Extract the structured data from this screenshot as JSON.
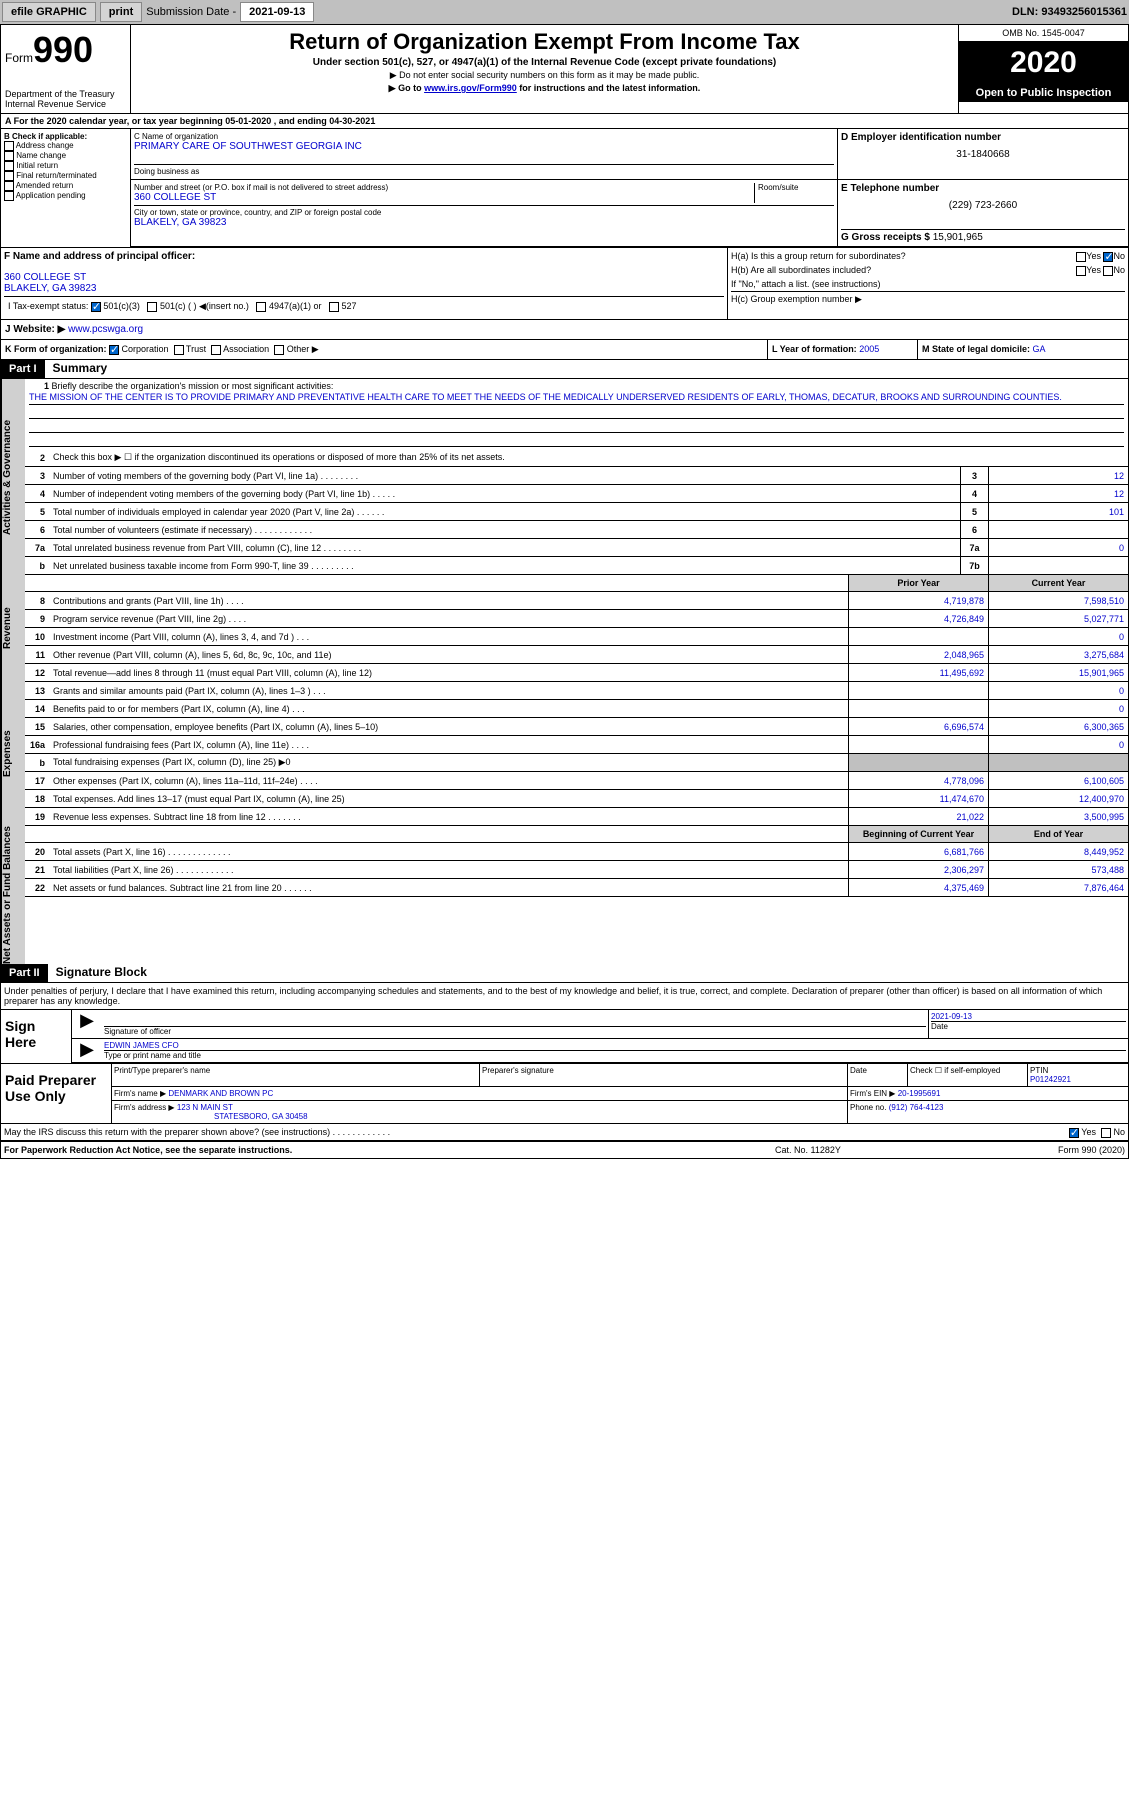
{
  "topbar": {
    "efile": "efile GRAPHIC",
    "print": "print",
    "sub_label": "Submission Date - ",
    "sub_date": "2021-09-13",
    "dln_label": "DLN: ",
    "dln": "93493256015361"
  },
  "header": {
    "form_word": "Form",
    "form_num": "990",
    "dept": "Department of the Treasury\nInternal Revenue Service",
    "title": "Return of Organization Exempt From Income Tax",
    "sub": "Under section 501(c), 527, or 4947(a)(1) of the Internal Revenue Code (except private foundations)",
    "note1": "▶ Do not enter social security numbers on this form as it may be made public.",
    "note2_pre": "▶ Go to ",
    "note2_link": "www.irs.gov/Form990",
    "note2_post": " for instructions and the latest information.",
    "omb": "OMB No. 1545-0047",
    "year": "2020",
    "public": "Open to Public Inspection"
  },
  "line_a": "A For the 2020 calendar year, or tax year beginning 05-01-2020      , and ending 04-30-2021",
  "box_b": {
    "label": "B Check if applicable:",
    "items": [
      "Address change",
      "Name change",
      "Initial return",
      "Final return/terminated",
      "Amended return",
      "Application pending"
    ]
  },
  "box_c": {
    "label": "C Name of organization",
    "name": "PRIMARY CARE OF SOUTHWEST GEORGIA INC",
    "dba_label": "Doing business as",
    "addr_label": "Number and street (or P.O. box if mail is not delivered to street address)",
    "room_label": "Room/suite",
    "addr": "360 COLLEGE ST",
    "city_label": "City or town, state or province, country, and ZIP or foreign postal code",
    "city": "BLAKELY, GA  39823"
  },
  "box_d": {
    "label": "D Employer identification number",
    "value": "31-1840668"
  },
  "box_e": {
    "label": "E Telephone number",
    "value": "(229) 723-2660"
  },
  "box_g": {
    "label": "G Gross receipts $ ",
    "value": "15,901,965"
  },
  "box_f": {
    "label": "F Name and address of principal officer:",
    "addr1": "360 COLLEGE ST",
    "addr2": "BLAKELY, GA  39823"
  },
  "box_h": {
    "ha": "H(a)  Is this a group return for subordinates?",
    "hb": "H(b)  Are all subordinates included?",
    "hb_note": "If \"No,\" attach a list. (see instructions)",
    "hc": "H(c)  Group exemption number ▶",
    "yes": "Yes",
    "no": "No"
  },
  "box_i": {
    "label": "I   Tax-exempt status:",
    "opts": [
      "501(c)(3)",
      "501(c) (  ) ◀(insert no.)",
      "4947(a)(1) or",
      "527"
    ]
  },
  "box_j": {
    "label": "J   Website: ▶  ",
    "value": "www.pcswga.org"
  },
  "box_k": "K Form of organization:",
  "k_opts": [
    "Corporation",
    "Trust",
    "Association",
    "Other ▶"
  ],
  "box_l": {
    "label": "L Year of formation: ",
    "value": "2005"
  },
  "box_m": {
    "label": "M State of legal domicile: ",
    "value": "GA"
  },
  "part1": {
    "hdr": "Part I",
    "title": "Summary"
  },
  "mission": {
    "num": "1",
    "label": "Briefly describe the organization's mission or most significant activities:",
    "text": "THE MISSION OF THE CENTER IS TO PROVIDE PRIMARY AND PREVENTATIVE HEALTH CARE TO MEET THE NEEDS OF THE MEDICALLY UNDERSERVED RESIDENTS OF EARLY, THOMAS, DECATUR, BROOKS AND SURROUNDING COUNTIES."
  },
  "vtabs": {
    "gov": "Activities & Governance",
    "rev": "Revenue",
    "exp": "Expenses",
    "net": "Net Assets or Fund Balances"
  },
  "lines": {
    "l2": {
      "n": "2",
      "t": "Check this box ▶ ☐  if the organization discontinued its operations or disposed of more than 25% of its net assets."
    },
    "l3": {
      "n": "3",
      "t": "Number of voting members of the governing body (Part VI, line 1a)   .    .    .    .    .    .    .    .",
      "box": "3",
      "v": "12"
    },
    "l4": {
      "n": "4",
      "t": "Number of independent voting members of the governing body (Part VI, line 1b)   .    .    .    .    .",
      "box": "4",
      "v": "12"
    },
    "l5": {
      "n": "5",
      "t": "Total number of individuals employed in calendar year 2020 (Part V, line 2a)   .    .    .    .    .    .",
      "box": "5",
      "v": "101"
    },
    "l6": {
      "n": "6",
      "t": "Total number of volunteers (estimate if necessary)    .    .    .    .    .    .    .    .    .    .    .    .",
      "box": "6",
      "v": ""
    },
    "l7a": {
      "n": "7a",
      "t": "Total unrelated business revenue from Part VIII, column (C), line 12   .    .    .    .    .    .    .    .",
      "box": "7a",
      "v": "0"
    },
    "l7b": {
      "n": "b",
      "t": "Net unrelated business taxable income from Form 990-T, line 39    .    .    .    .    .    .    .    .    .",
      "box": "7b",
      "v": ""
    }
  },
  "colhdr": {
    "py": "Prior Year",
    "cy": "Current Year"
  },
  "rev_lines": [
    {
      "n": "8",
      "t": "Contributions and grants (Part VIII, line 1h)    .    .    .    .",
      "py": "4,719,878",
      "cy": "7,598,510"
    },
    {
      "n": "9",
      "t": "Program service revenue (Part VIII, line 2g)    .    .    .    .",
      "py": "4,726,849",
      "cy": "5,027,771"
    },
    {
      "n": "10",
      "t": "Investment income (Part VIII, column (A), lines 3, 4, and 7d )    .    .    .",
      "py": "",
      "cy": "0"
    },
    {
      "n": "11",
      "t": "Other revenue (Part VIII, column (A), lines 5, 6d, 8c, 9c, 10c, and 11e)",
      "py": "2,048,965",
      "cy": "3,275,684"
    },
    {
      "n": "12",
      "t": "Total revenue—add lines 8 through 11 (must equal Part VIII, column (A), line 12)",
      "py": "11,495,692",
      "cy": "15,901,965"
    }
  ],
  "exp_lines": [
    {
      "n": "13",
      "t": "Grants and similar amounts paid (Part IX, column (A), lines 1–3 )   .    .    .",
      "py": "",
      "cy": "0"
    },
    {
      "n": "14",
      "t": "Benefits paid to or for members (Part IX, column (A), line 4)    .    .    .",
      "py": "",
      "cy": "0"
    },
    {
      "n": "15",
      "t": "Salaries, other compensation, employee benefits (Part IX, column (A), lines 5–10)",
      "py": "6,696,574",
      "cy": "6,300,365"
    },
    {
      "n": "16a",
      "t": "Professional fundraising fees (Part IX, column (A), line 11e)    .    .    .    .",
      "py": "",
      "cy": "0"
    },
    {
      "n": "b",
      "t": "Total fundraising expenses (Part IX, column (D), line 25) ▶0",
      "py": "",
      "cy": "",
      "noval": true
    },
    {
      "n": "17",
      "t": "Other expenses (Part IX, column (A), lines 11a–11d, 11f–24e)    .    .    .    .",
      "py": "4,778,096",
      "cy": "6,100,605"
    },
    {
      "n": "18",
      "t": "Total expenses. Add lines 13–17 (must equal Part IX, column (A), line 25)",
      "py": "11,474,670",
      "cy": "12,400,970"
    },
    {
      "n": "19",
      "t": "Revenue less expenses. Subtract line 18 from line 12   .    .    .    .    .    .    .",
      "py": "21,022",
      "cy": "3,500,995"
    }
  ],
  "net_hdr": {
    "py": "Beginning of Current Year",
    "cy": "End of Year"
  },
  "net_lines": [
    {
      "n": "20",
      "t": "Total assets (Part X, line 16)   .    .    .    .    .    .    .    .    .    .    .    .    .",
      "py": "6,681,766",
      "cy": "8,449,952"
    },
    {
      "n": "21",
      "t": "Total liabilities (Part X, line 26)   .    .    .    .    .    .    .    .    .    .    .    .",
      "py": "2,306,297",
      "cy": "573,488"
    },
    {
      "n": "22",
      "t": "Net assets or fund balances. Subtract line 21 from line 20   .    .    .    .    .    .",
      "py": "4,375,469",
      "cy": "7,876,464"
    }
  ],
  "part2": {
    "hdr": "Part II",
    "title": "Signature Block"
  },
  "sig": {
    "decl": "Under penalties of perjury, I declare that I have examined this return, including accompanying schedules and statements, and to the best of my knowledge and belief, it is true, correct, and complete. Declaration of preparer (other than officer) is based on all information of which preparer has any knowledge.",
    "sign_here": "Sign Here",
    "sig_label": "Signature of officer",
    "date_label": "Date",
    "date": "2021-09-13",
    "name": "EDWIN JAMES CFO",
    "name_label": "Type or print name and title"
  },
  "prep": {
    "label": "Paid Preparer Use Only",
    "print_label": "Print/Type preparer's name",
    "sig_label": "Preparer's signature",
    "date_label": "Date",
    "check_label": "Check ☐ if self-employed",
    "ptin_label": "PTIN",
    "ptin": "P01242921",
    "firm_name_label": "Firm's name      ▶",
    "firm_name": "DENMARK AND BROWN PC",
    "firm_ein_label": "Firm's EIN ▶ ",
    "firm_ein": "20-1995691",
    "firm_addr_label": "Firm's address ▶",
    "firm_addr": "123 N MAIN ST",
    "firm_city": "STATESBORO, GA  30458",
    "phone_label": "Phone no. ",
    "phone": "(912) 764-4123"
  },
  "discuss": {
    "text": "May the IRS discuss this return with the preparer shown above? (see instructions)    .    .    .    .    .    .    .    .    .    .    .    .",
    "yes": "Yes",
    "no": "No"
  },
  "footer": {
    "left": "For Paperwork Reduction Act Notice, see the separate instructions.",
    "mid": "Cat. No. 11282Y",
    "right": "Form 990 (2020)"
  }
}
